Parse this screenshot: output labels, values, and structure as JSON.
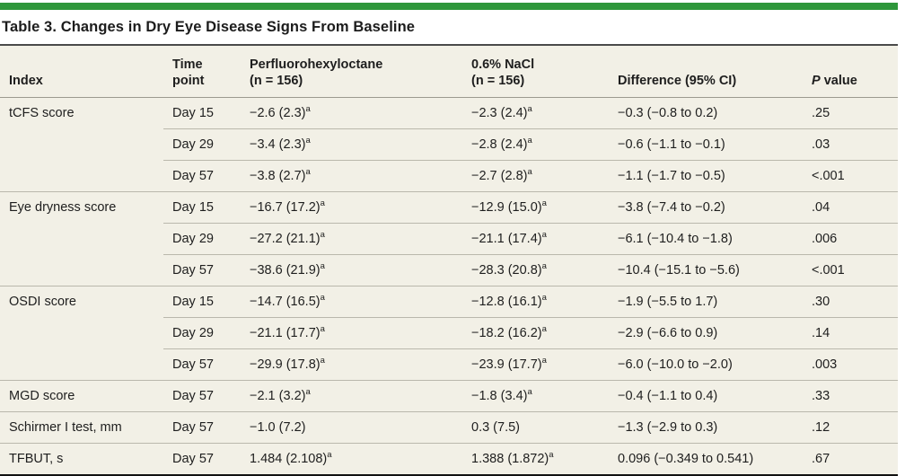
{
  "title": "Table 3. Changes in Dry Eye Disease Signs From Baseline",
  "colors": {
    "accent_green": "#2e973b",
    "table_background": "#f2f0e6",
    "row_divider": "#bab8ac",
    "title_rule": "#4a4a4a",
    "bottom_rule": "#121212",
    "text": "#1e1e1e"
  },
  "table": {
    "headers": {
      "index": "Index",
      "time_line1": "Time",
      "time_line2": "point",
      "pfho_line1": "Perfluorohexyloctane",
      "pfho_line2": "(n = 156)",
      "nacl_line1": "0.6% NaCl",
      "nacl_line2": "(n = 156)",
      "diff": "Difference (95% CI)",
      "p_italic": "P",
      "p_rest": " value"
    },
    "rows": [
      {
        "index": "tCFS score",
        "time": "Day 15",
        "pfho": "−2.6 (2.3)",
        "pfho_sup": "a",
        "nacl": "−2.3 (2.4)",
        "nacl_sup": "a",
        "diff": "−0.3 (−0.8 to 0.2)",
        "p": ".25"
      },
      {
        "index": "",
        "time": "Day 29",
        "pfho": "−3.4 (2.3)",
        "pfho_sup": "a",
        "nacl": "−2.8 (2.4)",
        "nacl_sup": "a",
        "diff": "−0.6 (−1.1 to −0.1)",
        "p": ".03"
      },
      {
        "index": "",
        "time": "Day 57",
        "pfho": "−3.8 (2.7)",
        "pfho_sup": "a",
        "nacl": "−2.7 (2.8)",
        "nacl_sup": "a",
        "diff": "−1.1 (−1.7 to −0.5)",
        "p": "<.001"
      },
      {
        "index": "Eye dryness score",
        "time": "Day 15",
        "pfho": "−16.7 (17.2)",
        "pfho_sup": "a",
        "nacl": "−12.9 (15.0)",
        "nacl_sup": "a",
        "diff": "−3.8 (−7.4 to −0.2)",
        "p": ".04"
      },
      {
        "index": "",
        "time": "Day 29",
        "pfho": "−27.2 (21.1)",
        "pfho_sup": "a",
        "nacl": "−21.1 (17.4)",
        "nacl_sup": "a",
        "diff": "−6.1 (−10.4 to −1.8)",
        "p": ".006"
      },
      {
        "index": "",
        "time": "Day 57",
        "pfho": "−38.6 (21.9)",
        "pfho_sup": "a",
        "nacl": "−28.3 (20.8)",
        "nacl_sup": "a",
        "diff": "−10.4 (−15.1 to −5.6)",
        "p": "<.001"
      },
      {
        "index": "OSDI score",
        "time": "Day 15",
        "pfho": "−14.7 (16.5)",
        "pfho_sup": "a",
        "nacl": "−12.8 (16.1)",
        "nacl_sup": "a",
        "diff": "−1.9 (−5.5 to 1.7)",
        "p": ".30"
      },
      {
        "index": "",
        "time": "Day 29",
        "pfho": "−21.1 (17.7)",
        "pfho_sup": "a",
        "nacl": "−18.2 (16.2)",
        "nacl_sup": "a",
        "diff": "−2.9 (−6.6 to 0.9)",
        "p": ".14"
      },
      {
        "index": "",
        "time": "Day 57",
        "pfho": "−29.9 (17.8)",
        "pfho_sup": "a",
        "nacl": "−23.9 (17.7)",
        "nacl_sup": "a",
        "diff": "−6.0 (−10.0 to −2.0)",
        "p": ".003"
      },
      {
        "index": "MGD score",
        "time": "Day 57",
        "pfho": "−2.1 (3.2)",
        "pfho_sup": "a",
        "nacl": "−1.8 (3.4)",
        "nacl_sup": "a",
        "diff": "−0.4 (−1.1 to 0.4)",
        "p": ".33"
      },
      {
        "index": "Schirmer I test, mm",
        "time": "Day 57",
        "pfho": "−1.0 (7.2)",
        "pfho_sup": "",
        "nacl": "0.3 (7.5)",
        "nacl_sup": "",
        "diff": "−1.3 (−2.9 to 0.3)",
        "p": ".12"
      },
      {
        "index": "TFBUT, s",
        "time": "Day 57",
        "pfho": "1.484 (2.108)",
        "pfho_sup": "a",
        "nacl": "1.388 (1.872)",
        "nacl_sup": "a",
        "diff": "0.096 (−0.349 to 0.541)",
        "p": ".67"
      }
    ]
  }
}
